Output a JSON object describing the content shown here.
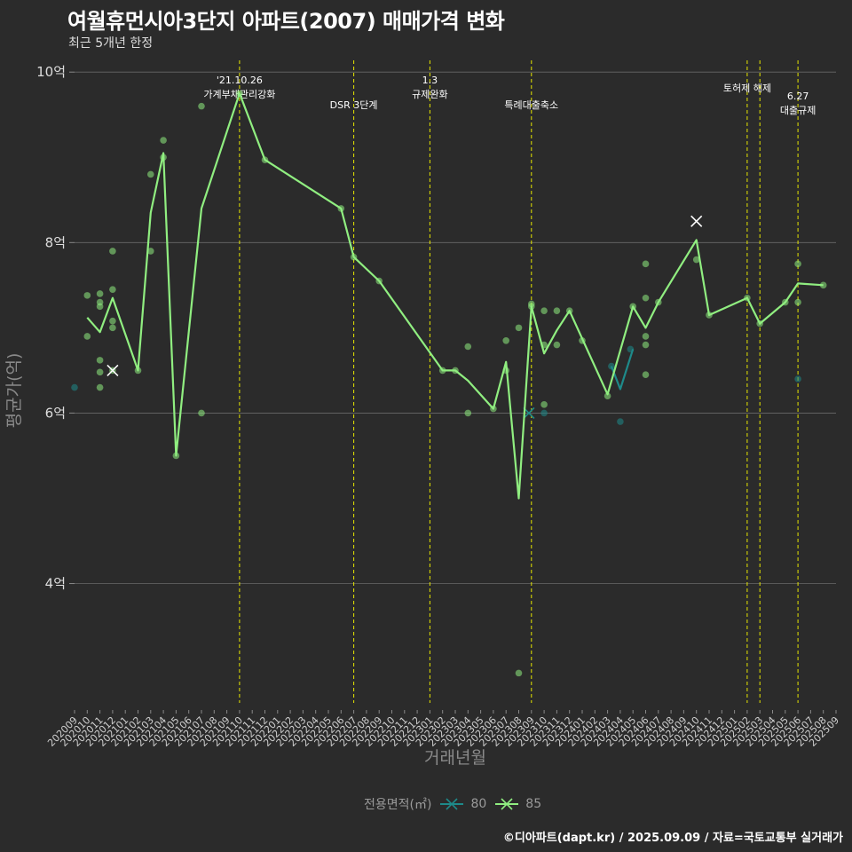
{
  "title": "여월휴먼시아3단지 아파트(2007) 매매가격 변화",
  "subtitle": "최근 5개년 한정",
  "caption": "©디아파트(dapt.kr) / 2025.09.09 / 자료=국토교통부 실거래가",
  "legend": {
    "title": "전용면적(㎡)",
    "placement": "bottom",
    "items": [
      {
        "name": "80",
        "color": "#1e8a8a"
      },
      {
        "name": "85",
        "color": "#90ee80"
      }
    ]
  },
  "chart_data": {
    "type": "line",
    "title": "여월휴먼시아3단지 아파트(2007) 매매가격 변화",
    "xlabel": "거래년월",
    "ylabel": "평균가(억)",
    "ylim": [
      2.6,
      10.2
    ],
    "y_ticks": [
      {
        "value": 4,
        "label": "4억"
      },
      {
        "value": 6,
        "label": "6억"
      },
      {
        "value": 8,
        "label": "8억"
      },
      {
        "value": 10,
        "label": "10억"
      }
    ],
    "x_start": "2020-09",
    "x_count": 61,
    "x_ticks": [
      "202009",
      "202010",
      "202011",
      "202012",
      "202101",
      "202102",
      "202103",
      "202104",
      "202105",
      "202106",
      "202107",
      "202108",
      "202109",
      "202110",
      "202111",
      "202112",
      "202201",
      "202202",
      "202203",
      "202204",
      "202205",
      "202206",
      "202207",
      "202208",
      "202209",
      "202210",
      "202211",
      "202212",
      "202301",
      "202302",
      "202303",
      "202304",
      "202305",
      "202306",
      "202307",
      "202308",
      "202309",
      "202310",
      "202311",
      "202312",
      "202401",
      "202402",
      "202403",
      "202404",
      "202405",
      "202406",
      "202407",
      "202408",
      "202409",
      "202410",
      "202411",
      "202412",
      "202501",
      "202502",
      "202503",
      "202504",
      "202505",
      "202506",
      "202507",
      "202508",
      "202509"
    ],
    "grid": true,
    "events": [
      {
        "x": 13,
        "label": "'21.10.26\n가계부채관리강화"
      },
      {
        "x": 22,
        "label": "DSR 3단계"
      },
      {
        "x": 28,
        "label": "1.3\n규제완화"
      },
      {
        "x": 36,
        "label": "특례대출축소"
      },
      {
        "x": 53,
        "label": "토허제 해제"
      },
      {
        "x": 54,
        "label": ""
      },
      {
        "x": 57,
        "label": "6.27\n대출규제"
      }
    ],
    "series": [
      {
        "name": "80",
        "color": "#1e8a8a",
        "line": [
          [
            42.3,
            6.55
          ],
          [
            43.0,
            6.28
          ],
          [
            44.0,
            6.75
          ]
        ],
        "points": [
          [
            0,
            6.3
          ],
          [
            37,
            6.0
          ],
          [
            42.3,
            6.55
          ],
          [
            43,
            5.9
          ],
          [
            43.8,
            6.75
          ],
          [
            57,
            6.4
          ]
        ],
        "max_marker": [
          35.8,
          6.0
        ]
      },
      {
        "name": "85",
        "color": "#90ee80",
        "line": [
          [
            1,
            7.12
          ],
          [
            2,
            6.95
          ],
          [
            3,
            7.35
          ],
          [
            5,
            6.5
          ],
          [
            6,
            8.35
          ],
          [
            7,
            9.05
          ],
          [
            8,
            5.5
          ],
          [
            10,
            8.4
          ],
          [
            13,
            9.75
          ],
          [
            15,
            8.97
          ],
          [
            21,
            8.4
          ],
          [
            22,
            7.83
          ],
          [
            24,
            7.55
          ],
          [
            29,
            6.5
          ],
          [
            30,
            6.5
          ],
          [
            31,
            6.38
          ],
          [
            33,
            6.05
          ],
          [
            34,
            6.6
          ],
          [
            35,
            5.0
          ],
          [
            36,
            7.25
          ],
          [
            37,
            6.7
          ],
          [
            38,
            6.97
          ],
          [
            39,
            7.2
          ],
          [
            42,
            6.22
          ],
          [
            44,
            7.25
          ],
          [
            45,
            7.0
          ],
          [
            46,
            7.3
          ],
          [
            49,
            8.03
          ],
          [
            50,
            7.15
          ],
          [
            53,
            7.35
          ],
          [
            54,
            7.05
          ],
          [
            56,
            7.3
          ],
          [
            57,
            7.52
          ],
          [
            59,
            7.5
          ]
        ],
        "points": [
          [
            1,
            7.38
          ],
          [
            1,
            6.9
          ],
          [
            2,
            7.4
          ],
          [
            2,
            7.3
          ],
          [
            2,
            7.25
          ],
          [
            2,
            6.62
          ],
          [
            2,
            6.48
          ],
          [
            2,
            6.3
          ],
          [
            3,
            7.9
          ],
          [
            3,
            7.45
          ],
          [
            3,
            7.08
          ],
          [
            3,
            7.0
          ],
          [
            3,
            6.5
          ],
          [
            5,
            6.5
          ],
          [
            6,
            8.8
          ],
          [
            6,
            7.9
          ],
          [
            7,
            9.2
          ],
          [
            7,
            9.0
          ],
          [
            8,
            5.5
          ],
          [
            10,
            9.6
          ],
          [
            10,
            6.0
          ],
          [
            13,
            9.75
          ],
          [
            15,
            8.97
          ],
          [
            21,
            8.4
          ],
          [
            22,
            7.83
          ],
          [
            24,
            7.55
          ],
          [
            29,
            6.5
          ],
          [
            30,
            6.5
          ],
          [
            31,
            6.78
          ],
          [
            31,
            6.0
          ],
          [
            33,
            6.05
          ],
          [
            34,
            6.85
          ],
          [
            34,
            6.5
          ],
          [
            35,
            7.0
          ],
          [
            35,
            2.95
          ],
          [
            36,
            7.28
          ],
          [
            36,
            7.25
          ],
          [
            37,
            7.2
          ],
          [
            37,
            6.8
          ],
          [
            37,
            6.1
          ],
          [
            38,
            7.2
          ],
          [
            38,
            6.8
          ],
          [
            39,
            7.2
          ],
          [
            40,
            6.85
          ],
          [
            42,
            6.2
          ],
          [
            44,
            7.25
          ],
          [
            45,
            7.75
          ],
          [
            45,
            7.35
          ],
          [
            45,
            6.9
          ],
          [
            45,
            6.8
          ],
          [
            45,
            6.45
          ],
          [
            46,
            7.3
          ],
          [
            49,
            7.8
          ],
          [
            50,
            7.15
          ],
          [
            53,
            7.35
          ],
          [
            54,
            7.05
          ],
          [
            56,
            7.3
          ],
          [
            57,
            7.75
          ],
          [
            57,
            7.3
          ],
          [
            59,
            7.5
          ]
        ],
        "max_marker": [
          3,
          6.5
        ],
        "extra_marker": [
          49,
          8.25
        ]
      }
    ]
  }
}
